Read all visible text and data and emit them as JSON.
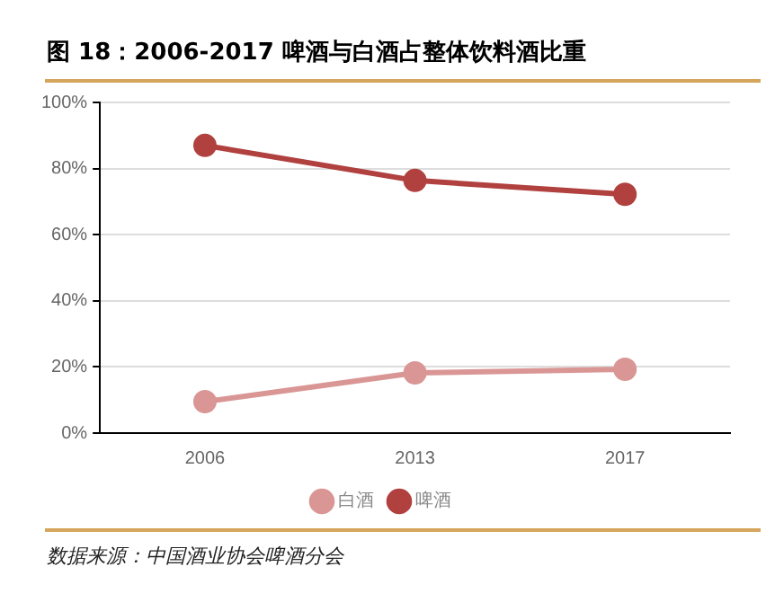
{
  "chart_data": {
    "type": "line",
    "title": "图 18：2006-2017 啤酒与白酒占整体饮料酒比重",
    "categories": [
      "2006",
      "2013",
      "2017"
    ],
    "series": [
      {
        "name": "白酒",
        "color": "#d99694",
        "values": [
          9.5,
          18.2,
          19.3
        ]
      },
      {
        "name": "啤酒",
        "color": "#b0413e",
        "values": [
          87.0,
          76.4,
          72.2
        ]
      }
    ],
    "ylim": [
      0,
      100
    ],
    "yticks": [
      {
        "value": 0,
        "label": "0%"
      },
      {
        "value": 20,
        "label": "20%"
      },
      {
        "value": 40,
        "label": "40%"
      },
      {
        "value": 60,
        "label": "60%"
      },
      {
        "value": 80,
        "label": "80%"
      },
      {
        "value": 100,
        "label": "100%"
      }
    ],
    "grid": "y",
    "legend": "bottom",
    "marker": "circle",
    "line_style": "solid",
    "annotations": [
      "数据来源：中国酒业协会啤酒分会"
    ]
  }
}
